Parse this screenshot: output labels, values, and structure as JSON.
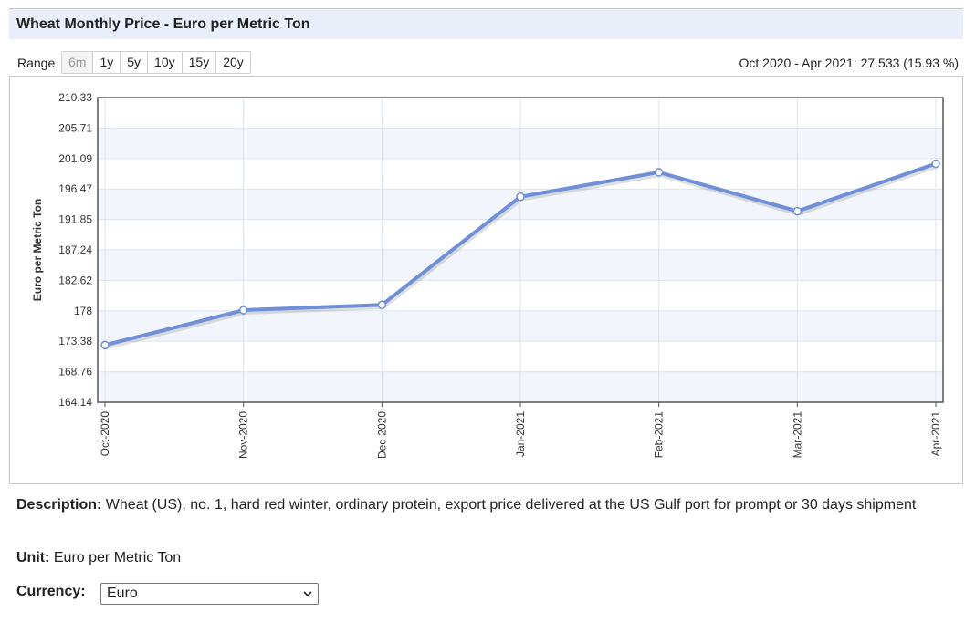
{
  "title": "Wheat Monthly Price - Euro per Metric Ton",
  "range": {
    "label": "Range",
    "buttons": [
      "6m",
      "1y",
      "5y",
      "10y",
      "15y",
      "20y"
    ],
    "selected": "6m",
    "summary": "Oct 2020 - Apr 2021: 27.533 (15.93 %)"
  },
  "chart_data": {
    "type": "line",
    "ylabel": "Euro per Metric Ton",
    "xlabel": "",
    "categories": [
      "Oct-2020",
      "Nov-2020",
      "Dec-2020",
      "Jan-2021",
      "Feb-2021",
      "Mar-2021",
      "Apr-2021"
    ],
    "series": [
      {
        "values": [
          172.8,
          178.1,
          178.9,
          195.3,
          199.0,
          193.1,
          200.3
        ]
      }
    ],
    "ylim": [
      164.14,
      210.33
    ],
    "yticks": [
      "164.14",
      "168.76",
      "173.38",
      "178",
      "182.62",
      "187.24",
      "191.85",
      "196.47",
      "201.09",
      "205.71",
      "210.33"
    ],
    "grid": true,
    "line_color": "#6f8fd6",
    "band_color": "#f2f5fb"
  },
  "description": {
    "label": "Description:",
    "text": " Wheat (US), no. 1, hard red winter, ordinary protein, export price delivered at the US Gulf port for prompt or 30 days shipment"
  },
  "unit": {
    "label": "Unit:",
    "text": " Euro per Metric Ton"
  },
  "currency": {
    "label": "Currency:",
    "value": "Euro"
  }
}
